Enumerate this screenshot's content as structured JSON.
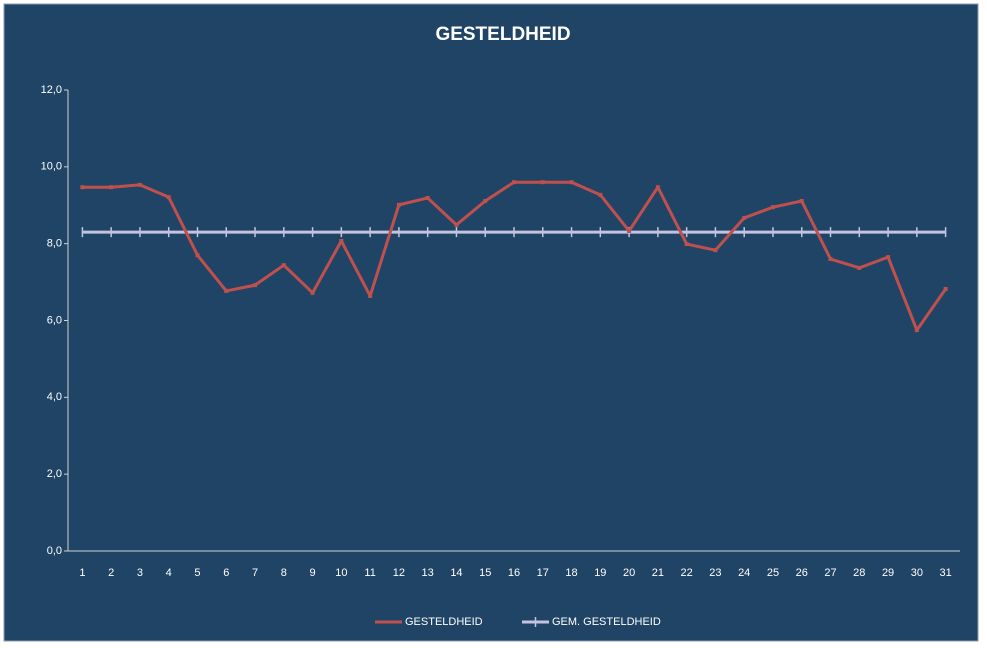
{
  "chart_data": {
    "type": "line",
    "title": "GESTELDHEID",
    "categories": [
      "1",
      "2",
      "3",
      "4",
      "5",
      "6",
      "7",
      "8",
      "9",
      "10",
      "11",
      "12",
      "13",
      "14",
      "15",
      "16",
      "17",
      "18",
      "19",
      "20",
      "21",
      "22",
      "23",
      "24",
      "25",
      "26",
      "27",
      "28",
      "29",
      "30",
      "31"
    ],
    "series": [
      {
        "name": "GESTELDHEID",
        "color": "#c0504d",
        "marker": "square",
        "values": [
          9.47,
          9.47,
          9.53,
          9.21,
          7.7,
          6.77,
          6.92,
          7.44,
          6.72,
          8.07,
          6.64,
          9.01,
          9.19,
          8.49,
          9.11,
          9.6,
          9.6,
          9.6,
          9.27,
          8.33,
          9.47,
          7.99,
          7.83,
          8.67,
          8.95,
          9.11,
          7.6,
          7.37,
          7.65,
          5.75,
          6.82
        ]
      },
      {
        "name": "GEM. GESTELDHEID",
        "color": "#c4c4e0",
        "marker": "plus",
        "values": [
          8.3,
          8.3,
          8.3,
          8.3,
          8.3,
          8.3,
          8.3,
          8.3,
          8.3,
          8.3,
          8.3,
          8.3,
          8.3,
          8.3,
          8.3,
          8.3,
          8.3,
          8.3,
          8.3,
          8.3,
          8.3,
          8.3,
          8.3,
          8.3,
          8.3,
          8.3,
          8.3,
          8.3,
          8.3,
          8.3,
          8.3
        ]
      }
    ],
    "ylim": [
      0,
      12
    ],
    "yticks": [
      {
        "value": 0,
        "label": "0,0"
      },
      {
        "value": 2,
        "label": "2,0"
      },
      {
        "value": 4,
        "label": "4,0"
      },
      {
        "value": 6,
        "label": "6,0"
      },
      {
        "value": 8,
        "label": "8,0"
      },
      {
        "value": 10,
        "label": "10,0"
      },
      {
        "value": 12,
        "label": "12,0"
      }
    ],
    "grid": false,
    "legend": "bottom"
  }
}
